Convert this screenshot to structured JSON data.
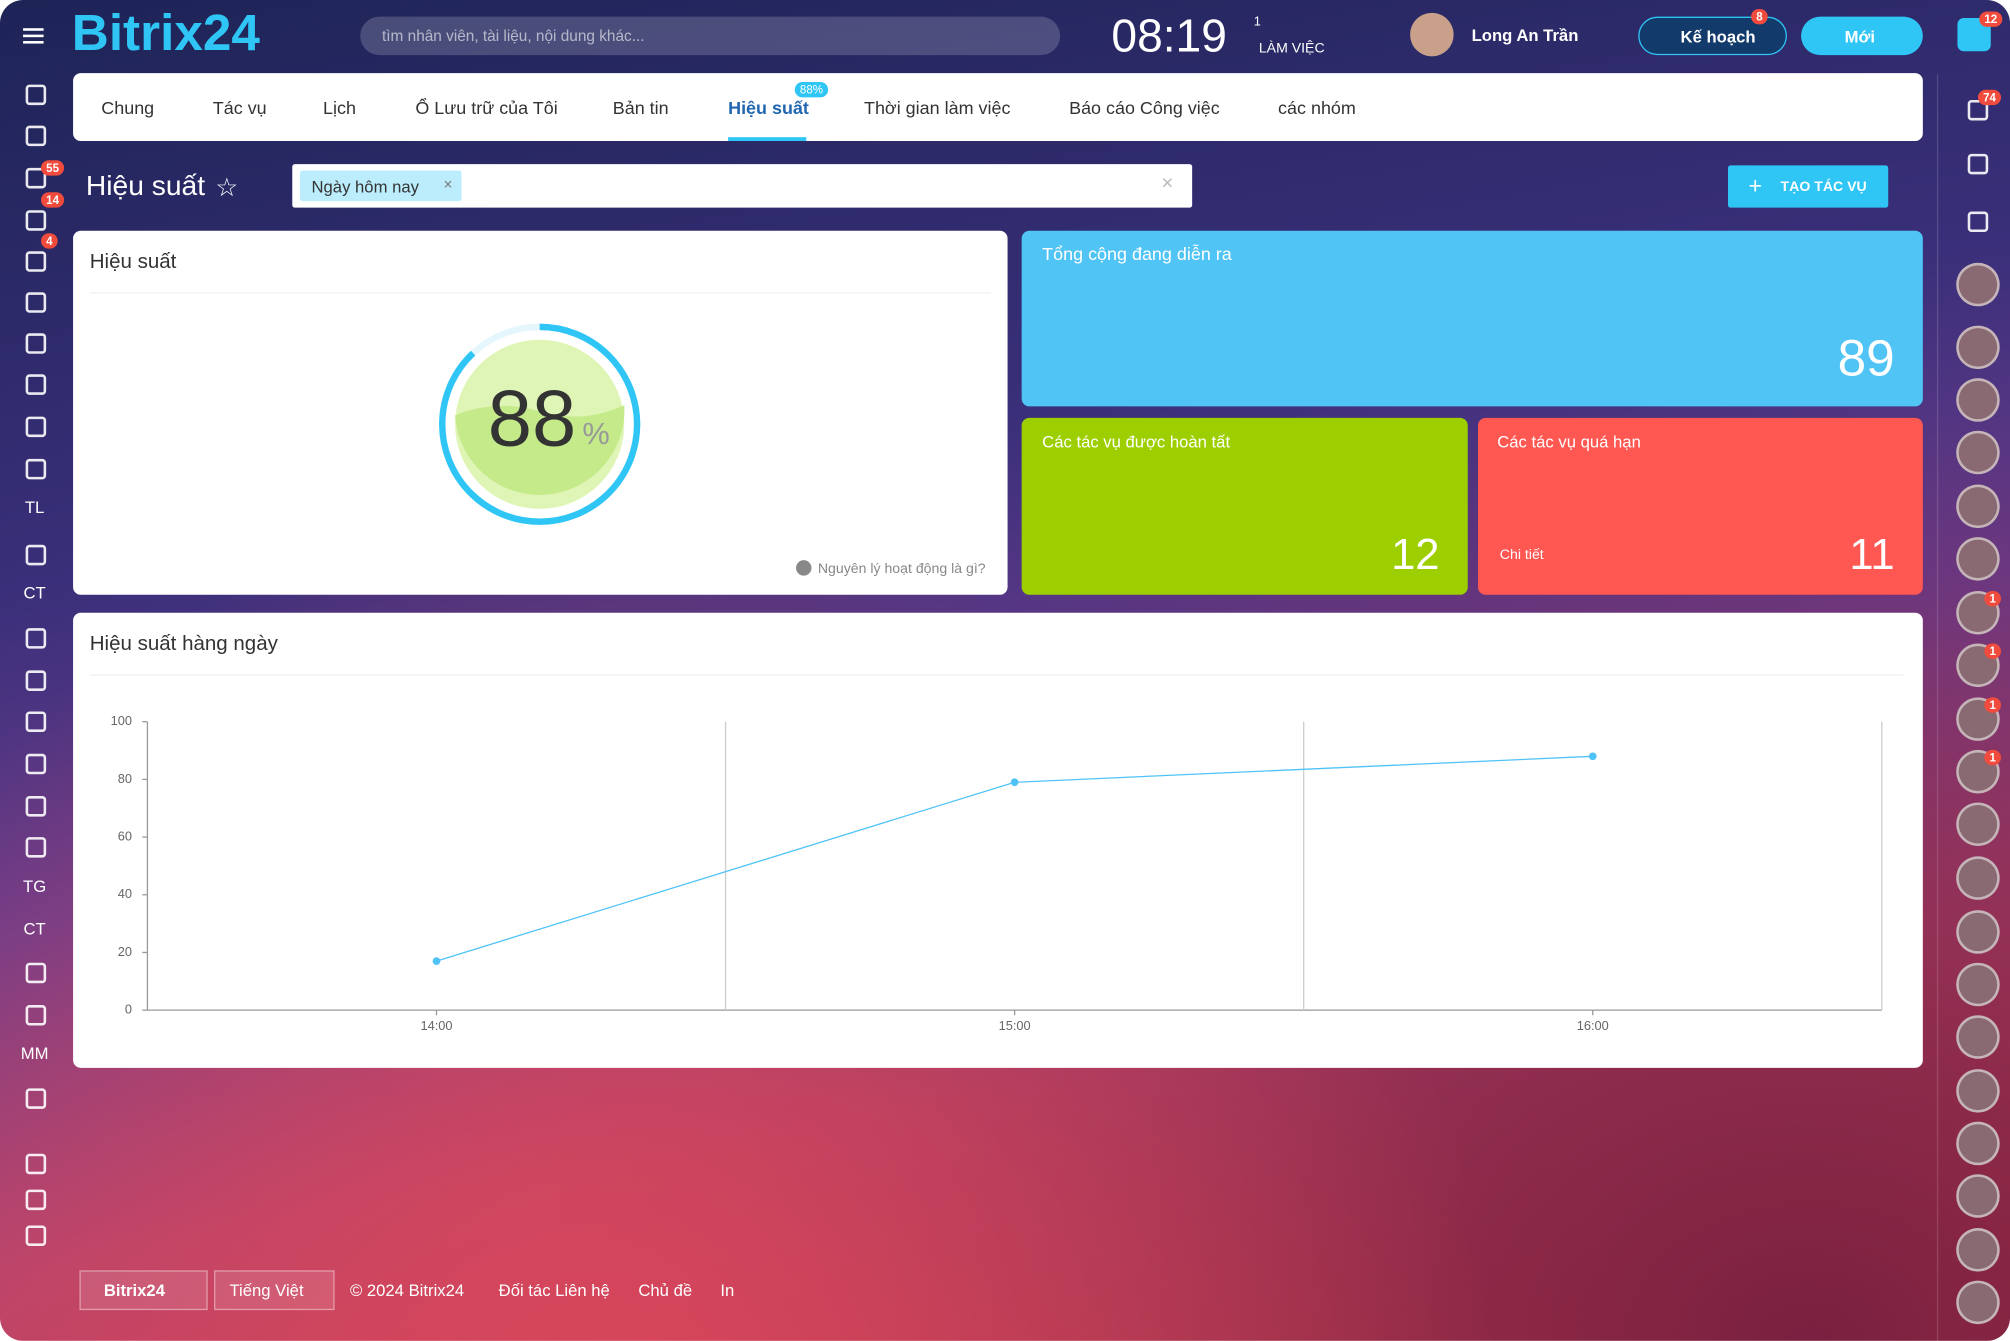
{
  "header": {
    "logo": "Bitrix24",
    "search_placeholder": "tìm nhân viên, tài liệu, nội dung khác...",
    "time": "08:19",
    "flag_count": "1",
    "status": "LÀM VIỆC",
    "user_name": "Long An Trần",
    "plan_button": "Kế hoạch",
    "plan_badge": "8",
    "new_button": "Mới",
    "help_badge": "12"
  },
  "left_sidebar": {
    "badges": [
      "55",
      "14",
      "4"
    ],
    "labels": [
      "TL",
      "CT",
      "TG",
      "CT",
      "MM"
    ]
  },
  "right_sidebar": {
    "notification_badge": "74",
    "avatar_badges": [
      "1",
      "1",
      "1",
      "1"
    ]
  },
  "tabs": {
    "items": [
      "Chung",
      "Tác vụ",
      "Lịch",
      "Ổ Lưu trữ của Tôi",
      "Bản tin",
      "Hiệu suất",
      "Thời gian làm việc",
      "Báo cáo Công việc",
      "các nhóm"
    ],
    "active_badge": "88%"
  },
  "toolbar": {
    "title": "Hiệu suất",
    "filter_tag": "Ngày hôm nay",
    "create_button": "TẠO TÁC VỤ"
  },
  "efficiency": {
    "title": "Hiệu suất",
    "value": 88,
    "unit": "%",
    "help": "Nguyên lý hoạt động là gì?"
  },
  "counters": {
    "total_label": "Tổng cộng đang diễn ra",
    "total": 89,
    "completed_label": "Các tác vụ được hoàn tất",
    "completed": 12,
    "overdue_label": "Các tác vụ quá hạn",
    "overdue_link": "Chi tiết",
    "overdue": 11
  },
  "chart_data": {
    "type": "line",
    "title": "Hiệu suất hàng ngày",
    "categories": [
      "14:00",
      "15:00",
      "16:00"
    ],
    "values": [
      17,
      79,
      88
    ],
    "color": "#4fc3f7",
    "ylim": [
      0,
      100
    ],
    "yticks": [
      0,
      20,
      40,
      60,
      80,
      100
    ],
    "grid": true
  },
  "footer": {
    "logo": "Bitrix24",
    "language": "Tiếng Việt",
    "copyright": "© 2024 Bitrix24",
    "links": [
      "Đối tác Liên hệ",
      "Chủ đề",
      "In"
    ]
  }
}
